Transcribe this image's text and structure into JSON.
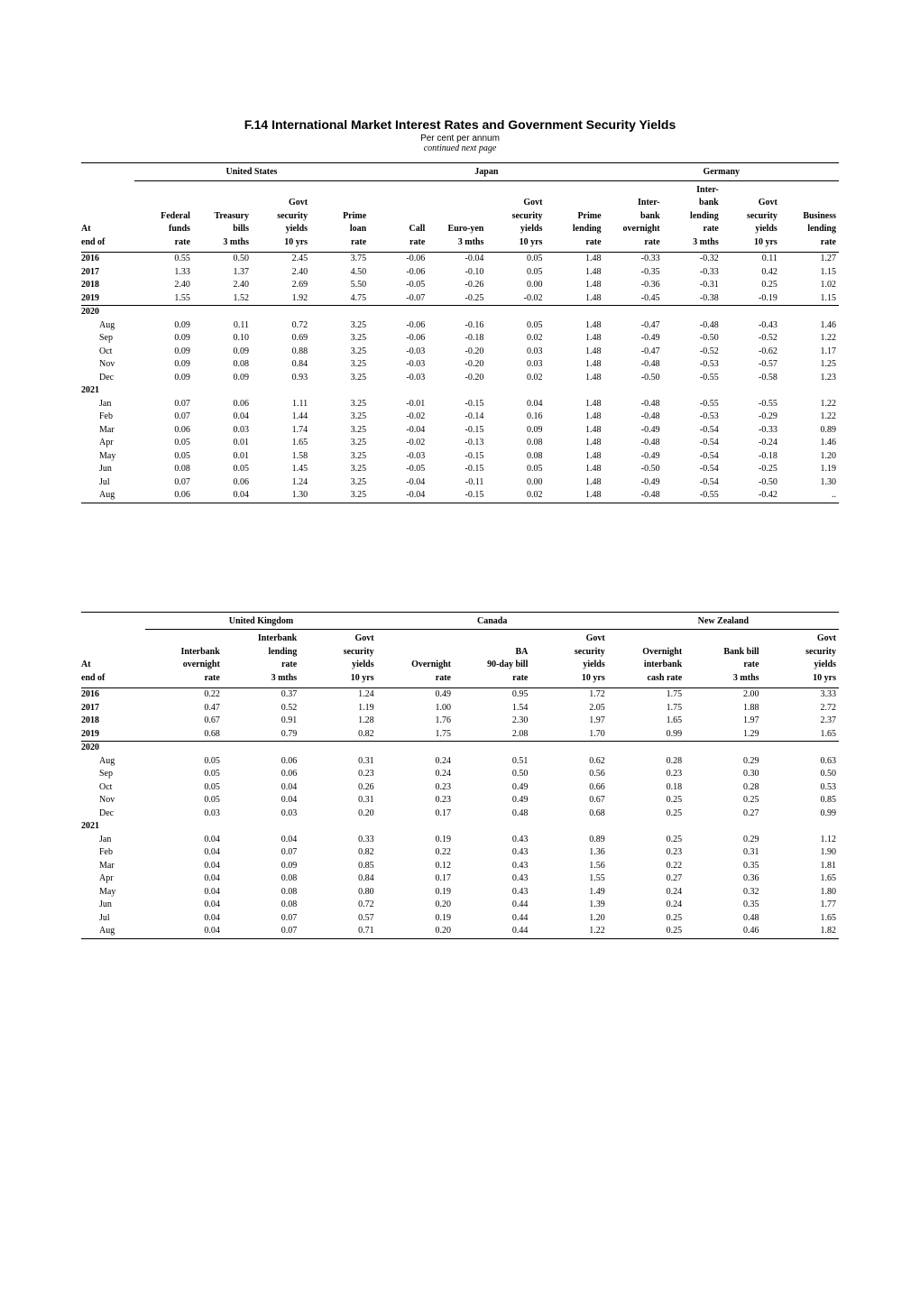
{
  "title": "F.14  International Market Interest Rates and Government Security Yields",
  "subtitle": "Per cent per annum",
  "continued": "continued next page",
  "row_stub": [
    "At",
    "end of"
  ],
  "table1": {
    "groups": [
      "United States",
      "Japan",
      "Germany"
    ],
    "headers": {
      "us": [
        "Federal\nfunds\nrate",
        "Treasury\nbills\n3 mths",
        "Govt\nsecurity\nyields\n10 yrs",
        "Prime\nloan\nrate"
      ],
      "jp": [
        "Call\nrate",
        "Euro-yen\n3 mths",
        "Govt\nsecurity\nyields\n10 yrs",
        "Prime\nlending\nrate"
      ],
      "de": [
        "Inter-\nbank\novernight\nrate",
        "Inter-\nbank\nlending\nrate\n3 mths",
        "Govt\nsecurity\nyields\n10 yrs",
        "Business\nlending\nrate"
      ]
    },
    "rows": [
      {
        "type": "data",
        "label": "2016",
        "bold": true,
        "vals": [
          "0.55",
          "0.50",
          "2.45",
          "3.75",
          "-0.06",
          "-0.04",
          "0.05",
          "1.48",
          "-0.33",
          "-0.32",
          "0.11",
          "1.27"
        ]
      },
      {
        "type": "data",
        "label": "2017",
        "bold": true,
        "vals": [
          "1.33",
          "1.37",
          "2.40",
          "4.50",
          "-0.06",
          "-0.10",
          "0.05",
          "1.48",
          "-0.35",
          "-0.33",
          "0.42",
          "1.15"
        ]
      },
      {
        "type": "data",
        "label": "2018",
        "bold": true,
        "vals": [
          "2.40",
          "2.40",
          "2.69",
          "5.50",
          "-0.05",
          "-0.26",
          "0.00",
          "1.48",
          "-0.36",
          "-0.31",
          "0.25",
          "1.02"
        ]
      },
      {
        "type": "data",
        "label": "2019",
        "bold": true,
        "rule_after": true,
        "vals": [
          "1.55",
          "1.52",
          "1.92",
          "4.75",
          "-0.07",
          "-0.25",
          "-0.02",
          "1.48",
          "-0.45",
          "-0.38",
          "-0.19",
          "1.15"
        ]
      },
      {
        "type": "year",
        "label": "2020"
      },
      {
        "type": "data",
        "label": "Aug",
        "vals": [
          "0.09",
          "0.11",
          "0.72",
          "3.25",
          "-0.06",
          "-0.16",
          "0.05",
          "1.48",
          "-0.47",
          "-0.48",
          "-0.43",
          "1.46"
        ]
      },
      {
        "type": "data",
        "label": "Sep",
        "vals": [
          "0.09",
          "0.10",
          "0.69",
          "3.25",
          "-0.06",
          "-0.18",
          "0.02",
          "1.48",
          "-0.49",
          "-0.50",
          "-0.52",
          "1.22"
        ]
      },
      {
        "type": "data",
        "label": "Oct",
        "vals": [
          "0.09",
          "0.09",
          "0.88",
          "3.25",
          "-0.03",
          "-0.20",
          "0.03",
          "1.48",
          "-0.47",
          "-0.52",
          "-0.62",
          "1.17"
        ]
      },
      {
        "type": "data",
        "label": "Nov",
        "vals": [
          "0.09",
          "0.08",
          "0.84",
          "3.25",
          "-0.03",
          "-0.20",
          "0.03",
          "1.48",
          "-0.48",
          "-0.53",
          "-0.57",
          "1.25"
        ]
      },
      {
        "type": "data",
        "label": "Dec",
        "vals": [
          "0.09",
          "0.09",
          "0.93",
          "3.25",
          "-0.03",
          "-0.20",
          "0.02",
          "1.48",
          "-0.50",
          "-0.55",
          "-0.58",
          "1.23"
        ]
      },
      {
        "type": "year",
        "label": "2021"
      },
      {
        "type": "data",
        "label": "Jan",
        "vals": [
          "0.07",
          "0.06",
          "1.11",
          "3.25",
          "-0.01",
          "-0.15",
          "0.04",
          "1.48",
          "-0.48",
          "-0.55",
          "-0.55",
          "1.22"
        ]
      },
      {
        "type": "data",
        "label": "Feb",
        "vals": [
          "0.07",
          "0.04",
          "1.44",
          "3.25",
          "-0.02",
          "-0.14",
          "0.16",
          "1.48",
          "-0.48",
          "-0.53",
          "-0.29",
          "1.22"
        ]
      },
      {
        "type": "data",
        "label": "Mar",
        "vals": [
          "0.06",
          "0.03",
          "1.74",
          "3.25",
          "-0.04",
          "-0.15",
          "0.09",
          "1.48",
          "-0.49",
          "-0.54",
          "-0.33",
          "0.89"
        ]
      },
      {
        "type": "data",
        "label": "Apr",
        "vals": [
          "0.05",
          "0.01",
          "1.65",
          "3.25",
          "-0.02",
          "-0.13",
          "0.08",
          "1.48",
          "-0.48",
          "-0.54",
          "-0.24",
          "1.46"
        ]
      },
      {
        "type": "data",
        "label": "May",
        "vals": [
          "0.05",
          "0.01",
          "1.58",
          "3.25",
          "-0.03",
          "-0.15",
          "0.08",
          "1.48",
          "-0.49",
          "-0.54",
          "-0.18",
          "1.20"
        ]
      },
      {
        "type": "data",
        "label": "Jun",
        "vals": [
          "0.08",
          "0.05",
          "1.45",
          "3.25",
          "-0.05",
          "-0.15",
          "0.05",
          "1.48",
          "-0.50",
          "-0.54",
          "-0.25",
          "1.19"
        ]
      },
      {
        "type": "data",
        "label": "Jul",
        "vals": [
          "0.07",
          "0.06",
          "1.24",
          "3.25",
          "-0.04",
          "-0.11",
          "0.00",
          "1.48",
          "-0.49",
          "-0.54",
          "-0.50",
          "1.30"
        ]
      },
      {
        "type": "data",
        "label": "Aug",
        "rule_after": true,
        "vals": [
          "0.06",
          "0.04",
          "1.30",
          "3.25",
          "-0.04",
          "-0.15",
          "0.02",
          "1.48",
          "-0.48",
          "-0.55",
          "-0.42",
          ".."
        ]
      }
    ]
  },
  "table2": {
    "groups": [
      "United Kingdom",
      "Canada",
      "New Zealand"
    ],
    "headers": {
      "uk": [
        "Interbank\novernight\nrate",
        "Interbank\nlending\nrate\n3 mths",
        "Govt\nsecurity\nyields\n10 yrs"
      ],
      "ca": [
        "Overnight\nrate",
        "BA\n90-day bill\nrate",
        "Govt\nsecurity\nyields\n10 yrs"
      ],
      "nz": [
        "Overnight\ninterbank\ncash rate",
        "Bank bill\nrate\n3 mths",
        "Govt\nsecurity\nyields\n10 yrs"
      ]
    },
    "rows": [
      {
        "type": "data",
        "label": "2016",
        "bold": true,
        "vals": [
          "0.22",
          "0.37",
          "1.24",
          "0.49",
          "0.95",
          "1.72",
          "1.75",
          "2.00",
          "3.33"
        ]
      },
      {
        "type": "data",
        "label": "2017",
        "bold": true,
        "vals": [
          "0.47",
          "0.52",
          "1.19",
          "1.00",
          "1.54",
          "2.05",
          "1.75",
          "1.88",
          "2.72"
        ]
      },
      {
        "type": "data",
        "label": "2018",
        "bold": true,
        "vals": [
          "0.67",
          "0.91",
          "1.28",
          "1.76",
          "2.30",
          "1.97",
          "1.65",
          "1.97",
          "2.37"
        ]
      },
      {
        "type": "data",
        "label": "2019",
        "bold": true,
        "rule_after": true,
        "vals": [
          "0.68",
          "0.79",
          "0.82",
          "1.75",
          "2.08",
          "1.70",
          "0.99",
          "1.29",
          "1.65"
        ]
      },
      {
        "type": "year",
        "label": "2020"
      },
      {
        "type": "data",
        "label": "Aug",
        "vals": [
          "0.05",
          "0.06",
          "0.31",
          "0.24",
          "0.51",
          "0.62",
          "0.28",
          "0.29",
          "0.63"
        ]
      },
      {
        "type": "data",
        "label": "Sep",
        "vals": [
          "0.05",
          "0.06",
          "0.23",
          "0.24",
          "0.50",
          "0.56",
          "0.23",
          "0.30",
          "0.50"
        ]
      },
      {
        "type": "data",
        "label": "Oct",
        "vals": [
          "0.05",
          "0.04",
          "0.26",
          "0.23",
          "0.49",
          "0.66",
          "0.18",
          "0.28",
          "0.53"
        ]
      },
      {
        "type": "data",
        "label": "Nov",
        "vals": [
          "0.05",
          "0.04",
          "0.31",
          "0.23",
          "0.49",
          "0.67",
          "0.25",
          "0.25",
          "0.85"
        ]
      },
      {
        "type": "data",
        "label": "Dec",
        "vals": [
          "0.03",
          "0.03",
          "0.20",
          "0.17",
          "0.48",
          "0.68",
          "0.25",
          "0.27",
          "0.99"
        ]
      },
      {
        "type": "year",
        "label": "2021"
      },
      {
        "type": "data",
        "label": "Jan",
        "vals": [
          "0.04",
          "0.04",
          "0.33",
          "0.19",
          "0.43",
          "0.89",
          "0.25",
          "0.29",
          "1.12"
        ]
      },
      {
        "type": "data",
        "label": "Feb",
        "vals": [
          "0.04",
          "0.07",
          "0.82",
          "0.22",
          "0.43",
          "1.36",
          "0.23",
          "0.31",
          "1.90"
        ]
      },
      {
        "type": "data",
        "label": "Mar",
        "vals": [
          "0.04",
          "0.09",
          "0.85",
          "0.12",
          "0.43",
          "1.56",
          "0.22",
          "0.35",
          "1.81"
        ]
      },
      {
        "type": "data",
        "label": "Apr",
        "vals": [
          "0.04",
          "0.08",
          "0.84",
          "0.17",
          "0.43",
          "1.55",
          "0.27",
          "0.36",
          "1.65"
        ]
      },
      {
        "type": "data",
        "label": "May",
        "vals": [
          "0.04",
          "0.08",
          "0.80",
          "0.19",
          "0.43",
          "1.49",
          "0.24",
          "0.32",
          "1.80"
        ]
      },
      {
        "type": "data",
        "label": "Jun",
        "vals": [
          "0.04",
          "0.08",
          "0.72",
          "0.20",
          "0.44",
          "1.39",
          "0.24",
          "0.35",
          "1.77"
        ]
      },
      {
        "type": "data",
        "label": "Jul",
        "vals": [
          "0.04",
          "0.07",
          "0.57",
          "0.19",
          "0.44",
          "1.20",
          "0.25",
          "0.48",
          "1.65"
        ]
      },
      {
        "type": "data",
        "label": "Aug",
        "rule_after": true,
        "vals": [
          "0.04",
          "0.07",
          "0.71",
          "0.20",
          "0.44",
          "1.22",
          "0.25",
          "0.46",
          "1.82"
        ]
      }
    ]
  }
}
